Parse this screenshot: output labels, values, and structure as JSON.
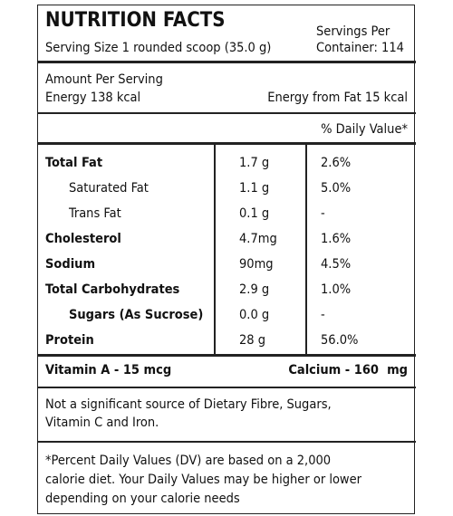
{
  "header": {
    "title": "NUTRITION FACTS",
    "serving_size": "Serving Size 1 rounded scoop (35.0 g)",
    "servings_lines": [
      "Servings Per",
      "Container: 114"
    ]
  },
  "amount": {
    "heading": "Amount Per Serving",
    "energy": "Energy 138 kcal",
    "energy_from_fat": "Energy from Fat 15 kcal"
  },
  "daily_value_heading": "% Daily Value*",
  "table": {
    "rows": [
      [
        "Total Fat",
        "1.7 g",
        "2.6%"
      ],
      [
        "Saturated Fat",
        "1.1 g",
        "5.0%"
      ],
      [
        "Trans Fat",
        "0.1 g",
        "-"
      ],
      [
        "Cholesterol",
        "4.7mg",
        "1.6%"
      ],
      [
        "Sodium",
        "90mg",
        "4.5%"
      ],
      [
        "Total Carbohydrates",
        "2.9 g",
        "1.0%"
      ],
      [
        "Sugars (As Sucrose)",
        "0.0 g",
        "-"
      ],
      [
        "Protein",
        "28 g",
        "56.0%"
      ]
    ]
  },
  "vitamins": {
    "left": "Vitamin A - 15 mcg",
    "right": "Calcium - 160  mg"
  },
  "note": [
    "Not a significant source of Dietary Fibre, Sugars,",
    "Vitamin C and Iron."
  ],
  "footnote": [
    "*Percent Daily Values (DV) are based on a 2,000",
    "calorie diet. Your Daily Values may be higher or lower",
    "depending on your calorie needs"
  ]
}
